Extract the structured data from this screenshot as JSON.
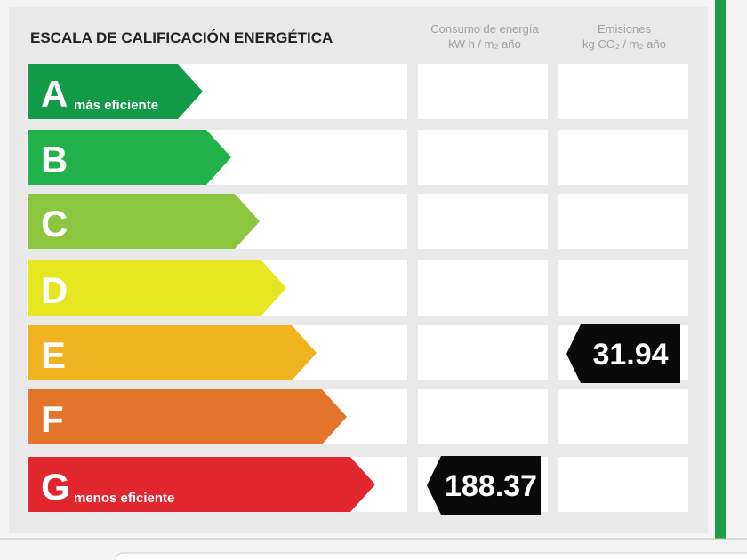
{
  "header": {
    "title": "ESCALA DE CALIFICACIÓN ENERGÉTICA",
    "columns": [
      {
        "line1": "Consumo de energía",
        "line2": "kW h / m₂ año"
      },
      {
        "line1": "Emisiones",
        "line2": "kg CO₂ / m₂ año"
      }
    ]
  },
  "rows": [
    {
      "letter": "A",
      "note": "más eficiente"
    },
    {
      "letter": "B"
    },
    {
      "letter": "C"
    },
    {
      "letter": "D"
    },
    {
      "letter": "E",
      "emissions": 31.94
    },
    {
      "letter": "F"
    },
    {
      "letter": "G",
      "note": "menos eficiente",
      "consumption": 188.37
    }
  ]
}
